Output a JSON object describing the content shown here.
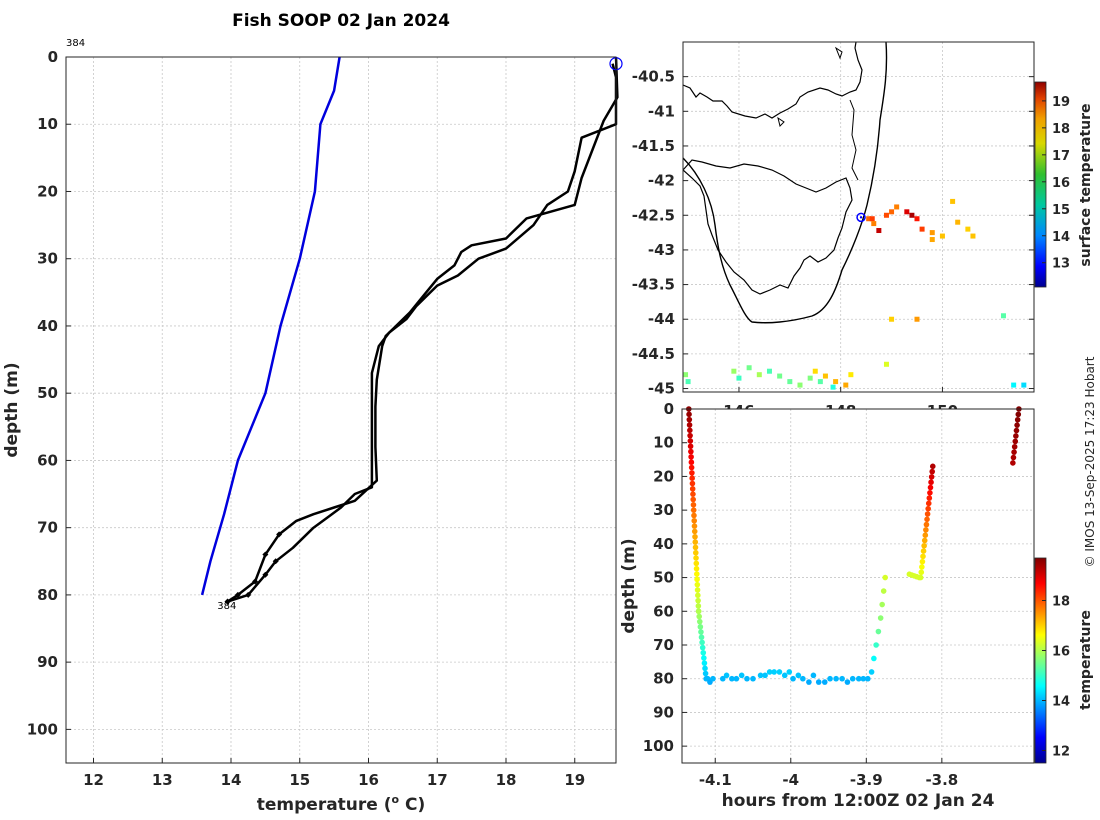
{
  "colors": {
    "xbt_profile": "#0000dd",
    "fish_profile": "#000000",
    "marker": "#0000ff",
    "grid": "#c8c8c8",
    "axis": "#262626"
  },
  "credit": "© IMOS 13-Sep-2025 17:23 Hobart",
  "chart_data": [
    {
      "type": "line",
      "title": "Fish SOOP 02 Jan 2024",
      "xlabel": "temperature (",
      "xlabel_sup": "o",
      "xlabel_tail": " C)",
      "ylabel": "depth (m)",
      "xlim": [
        11.6,
        19.6
      ],
      "ylim": [
        0,
        105
      ],
      "y_reversed": true,
      "xticks": [
        12,
        13,
        14,
        15,
        16,
        17,
        18,
        19
      ],
      "yticks": [
        0,
        10,
        20,
        30,
        40,
        50,
        60,
        70,
        80,
        90,
        100
      ],
      "grid": true,
      "annotations": [
        {
          "text": "384",
          "x": 11.6,
          "y": -2.2
        },
        {
          "text": "384",
          "x": 13.8,
          "y": 81.5
        }
      ],
      "series": [
        {
          "name": "reference profile",
          "points": [
            [
              15.58,
              0
            ],
            [
              15.5,
              5
            ],
            [
              15.3,
              10
            ],
            [
              15.22,
              20
            ],
            [
              15.0,
              30
            ],
            [
              14.72,
              40
            ],
            [
              14.5,
              50
            ],
            [
              14.1,
              60
            ],
            [
              13.9,
              68
            ],
            [
              13.7,
              75
            ],
            [
              13.58,
              80
            ]
          ]
        },
        {
          "name": "fish track descent",
          "points": [
            [
              19.6,
              0
            ],
            [
              19.62,
              6
            ],
            [
              19.42,
              9.5
            ],
            [
              19.1,
              18
            ],
            [
              19.0,
              22
            ],
            [
              18.3,
              24
            ],
            [
              18.0,
              27
            ],
            [
              17.5,
              28
            ],
            [
              17.35,
              29
            ],
            [
              17.25,
              31
            ],
            [
              17.0,
              33
            ],
            [
              16.8,
              35.5
            ],
            [
              16.6,
              38
            ],
            [
              16.4,
              40
            ],
            [
              16.25,
              41.5
            ],
            [
              16.2,
              43
            ],
            [
              16.12,
              48
            ],
            [
              16.1,
              52
            ],
            [
              16.1,
              58
            ],
            [
              16.12,
              63
            ],
            [
              15.8,
              66
            ],
            [
              15.5,
              67
            ],
            [
              15.2,
              68
            ],
            [
              14.95,
              69
            ],
            [
              14.7,
              71
            ],
            [
              14.5,
              74
            ],
            [
              14.35,
              78
            ],
            [
              14.1,
              80
            ],
            [
              13.95,
              81
            ]
          ]
        },
        {
          "name": "fish track ascent",
          "points": [
            [
              13.95,
              81
            ],
            [
              14.25,
              80
            ],
            [
              14.5,
              77
            ],
            [
              14.65,
              75
            ],
            [
              14.9,
              73
            ],
            [
              15.2,
              70
            ],
            [
              15.4,
              68.5
            ],
            [
              15.6,
              67
            ],
            [
              15.8,
              65
            ],
            [
              16.05,
              64
            ],
            [
              16.05,
              60
            ],
            [
              16.05,
              52
            ],
            [
              16.05,
              47
            ],
            [
              16.15,
              43
            ],
            [
              16.3,
              41
            ],
            [
              16.55,
              39
            ],
            [
              16.7,
              37
            ],
            [
              17.0,
              34
            ],
            [
              17.3,
              32.5
            ],
            [
              17.6,
              30
            ],
            [
              18.0,
              28.5
            ],
            [
              18.4,
              25
            ],
            [
              18.6,
              22
            ],
            [
              18.9,
              20
            ],
            [
              19.0,
              17
            ],
            [
              19.1,
              12
            ],
            [
              19.6,
              10
            ],
            [
              19.6,
              7
            ],
            [
              19.6,
              3
            ],
            [
              19.55,
              1
            ]
          ]
        }
      ],
      "marker": {
        "shape": "circle",
        "x": 19.6,
        "y": 1
      }
    },
    {
      "type": "map",
      "xticks": [
        146,
        148,
        150
      ],
      "yticks": [
        -40.5,
        -41,
        -41.5,
        -42,
        -42.5,
        -43,
        -43.5,
        -44,
        -44.5,
        -45
      ],
      "xlim": [
        144.9,
        151.8
      ],
      "ylim": [
        -45.05,
        -40.0
      ],
      "colorbar": {
        "label": "surface temperature",
        "ticks": [
          13,
          14,
          15,
          16,
          17,
          18,
          19
        ],
        "range": [
          12.1,
          19.7
        ]
      },
      "marker": {
        "lon": 148.4,
        "lat": -42.53
      },
      "sst_points": [
        [
          148.55,
          -42.55,
          18.0
        ],
        [
          148.62,
          -42.55,
          18.3
        ],
        [
          148.65,
          -42.62,
          17.8
        ],
        [
          148.75,
          -42.72,
          19.2
        ],
        [
          148.9,
          -42.5,
          18.2
        ],
        [
          149.0,
          -42.45,
          18.0
        ],
        [
          149.1,
          -42.38,
          17.8
        ],
        [
          149.3,
          -42.45,
          19.0
        ],
        [
          149.4,
          -42.5,
          19.4
        ],
        [
          149.5,
          -42.55,
          18.6
        ],
        [
          149.6,
          -42.7,
          18.3
        ],
        [
          149.8,
          -42.75,
          17.6
        ],
        [
          150.0,
          -42.8,
          17.3
        ],
        [
          150.3,
          -42.6,
          17.4
        ],
        [
          150.5,
          -42.7,
          17.2
        ],
        [
          150.6,
          -42.8,
          17.3
        ],
        [
          150.2,
          -42.3,
          17.3
        ],
        [
          149.8,
          -42.85,
          17.5
        ],
        [
          149.0,
          -44.0,
          17.2
        ],
        [
          149.5,
          -44.0,
          17.6
        ],
        [
          151.2,
          -43.95,
          15.6
        ],
        [
          148.9,
          -44.65,
          16.6
        ],
        [
          144.95,
          -44.8,
          16.0
        ],
        [
          145.0,
          -44.9,
          15.5
        ],
        [
          145.9,
          -44.75,
          16.1
        ],
        [
          146.0,
          -44.85,
          15.4
        ],
        [
          146.2,
          -44.7,
          15.8
        ],
        [
          146.4,
          -44.8,
          16.2
        ],
        [
          146.6,
          -44.75,
          15.5
        ],
        [
          146.8,
          -44.82,
          15.8
        ],
        [
          147.0,
          -44.9,
          15.7
        ],
        [
          147.2,
          -44.95,
          16.0
        ],
        [
          147.4,
          -44.85,
          15.9
        ],
        [
          147.6,
          -44.9,
          15.6
        ],
        [
          147.5,
          -44.75,
          17.1
        ],
        [
          147.7,
          -44.82,
          17.3
        ],
        [
          147.9,
          -44.9,
          17.4
        ],
        [
          148.1,
          -44.95,
          17.5
        ],
        [
          148.2,
          -44.8,
          17.0
        ],
        [
          147.85,
          -44.98,
          15.2
        ],
        [
          151.4,
          -44.95,
          14.9
        ],
        [
          151.6,
          -44.95,
          14.7
        ]
      ]
    },
    {
      "type": "scatter",
      "xlabel": "hours from 12:00Z 02 Jan 24",
      "ylabel": "depth (m)",
      "xlim": [
        -4.144,
        -3.678
      ],
      "ylim": [
        0,
        105
      ],
      "y_reversed": true,
      "xticks": [
        -4.1,
        -4.0,
        -3.9,
        -3.8
      ],
      "xticklabels": [
        "-4.1",
        "-4",
        "-3.9",
        "-3.8"
      ],
      "yticks": [
        0,
        10,
        20,
        30,
        40,
        50,
        60,
        70,
        80,
        90,
        100
      ],
      "colorbar": {
        "label": "temperature",
        "ticks": [
          12,
          14,
          16,
          18
        ],
        "range": [
          11.5,
          19.7
        ]
      },
      "segments": [
        {
          "x0": -4.135,
          "x1": -4.122,
          "d0": 0,
          "d1": 60,
          "t0": 19.6,
          "t1": 16.0
        },
        {
          "x0": -4.122,
          "x1": -4.112,
          "d0": 60,
          "d1": 80,
          "t0": 16.0,
          "t1": 14.0
        },
        {
          "x0": -3.843,
          "x1": -3.83,
          "d0": 49,
          "d1": 50,
          "t0": 16.3,
          "t1": 16.3
        },
        {
          "x0": -3.828,
          "x1": -3.812,
          "d0": 50,
          "d1": 17,
          "t0": 16.3,
          "t1": 19.3
        },
        {
          "x0": -3.706,
          "x1": -3.698,
          "d0": 16,
          "d1": 0,
          "t0": 19.3,
          "t1": 19.7
        }
      ],
      "points": [
        [
          -4.11,
          80,
          14.0
        ],
        [
          -4.107,
          81,
          13.9
        ],
        [
          -4.103,
          80,
          14.0
        ],
        [
          -4.09,
          80,
          14.0
        ],
        [
          -4.085,
          79,
          14.1
        ],
        [
          -4.078,
          80,
          14.0
        ],
        [
          -4.072,
          80,
          14.0
        ],
        [
          -4.065,
          79,
          14.1
        ],
        [
          -4.058,
          80,
          14.0
        ],
        [
          -4.05,
          80,
          14.0
        ],
        [
          -4.04,
          79,
          14.1
        ],
        [
          -4.034,
          79,
          14.1
        ],
        [
          -4.028,
          78,
          14.2
        ],
        [
          -4.022,
          78,
          14.2
        ],
        [
          -4.015,
          78,
          14.2
        ],
        [
          -4.008,
          79,
          14.1
        ],
        [
          -4.002,
          78,
          14.2
        ],
        [
          -3.997,
          80,
          14.0
        ],
        [
          -3.99,
          79,
          14.1
        ],
        [
          -3.984,
          80,
          14.0
        ],
        [
          -3.976,
          81,
          13.9
        ],
        [
          -3.97,
          79,
          14.0
        ],
        [
          -3.963,
          81,
          13.9
        ],
        [
          -3.955,
          81,
          13.9
        ],
        [
          -3.948,
          80,
          14.0
        ],
        [
          -3.94,
          80,
          14.0
        ],
        [
          -3.932,
          80,
          14.0
        ],
        [
          -3.925,
          81,
          13.9
        ],
        [
          -3.918,
          80,
          14.0
        ],
        [
          -3.91,
          80,
          14.0
        ],
        [
          -3.904,
          80,
          14.0
        ],
        [
          -3.898,
          80,
          14.0
        ],
        [
          -3.893,
          78,
          14.2
        ],
        [
          -3.89,
          74,
          14.6
        ],
        [
          -3.887,
          70,
          15.0
        ],
        [
          -3.884,
          66,
          15.4
        ],
        [
          -3.881,
          62,
          15.7
        ],
        [
          -3.879,
          58,
          15.9
        ],
        [
          -3.877,
          54,
          16.1
        ],
        [
          -3.875,
          50,
          16.3
        ]
      ]
    }
  ]
}
